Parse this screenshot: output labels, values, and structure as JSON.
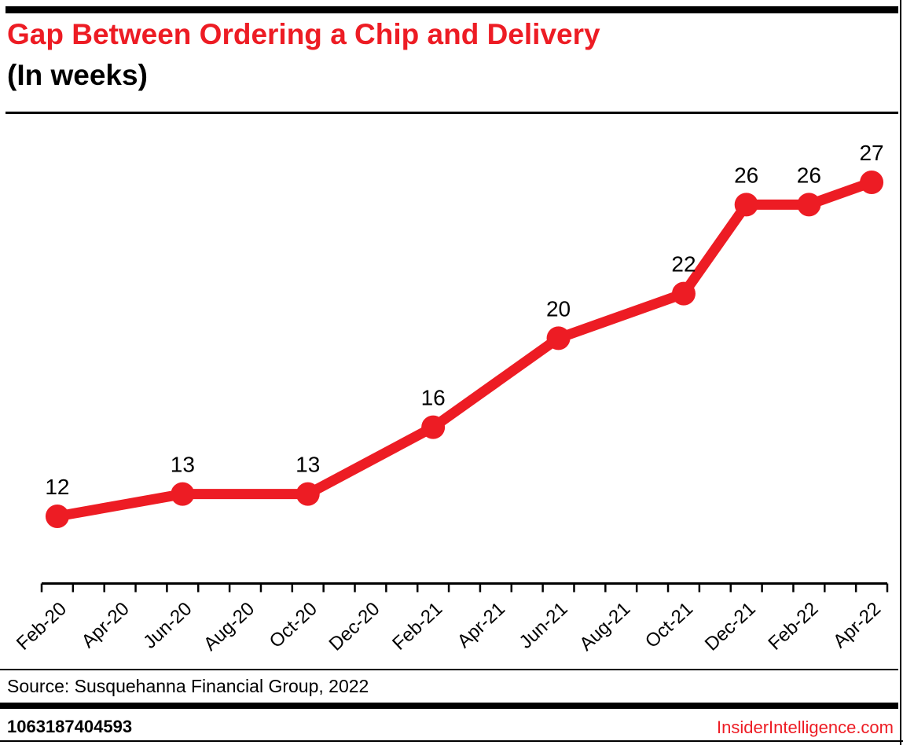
{
  "chart_data": {
    "type": "line",
    "title": "Gap Between Ordering a Chip and Delivery",
    "subtitle": "(In weeks)",
    "x": [
      "Feb-20",
      "Jun-20",
      "Oct-20",
      "Feb-21",
      "Jun-21",
      "Oct-21",
      "Dec-21",
      "Feb-22",
      "Apr-22"
    ],
    "values": [
      12,
      13,
      13,
      16,
      20,
      22,
      26,
      26,
      27
    ],
    "point_labels": [
      "12",
      "13",
      "13",
      "16",
      "20",
      "22",
      "26",
      "26",
      "27"
    ],
    "x_axis_tick_labels": [
      "Feb-20",
      "Apr-20",
      "Jun-20",
      "Aug-20",
      "Oct-20",
      "Dec-20",
      "Feb-21",
      "Apr-21",
      "Jun-21",
      "Aug-21",
      "Oct-21",
      "Dec-21",
      "Feb-22",
      "Apr-22"
    ],
    "xlabel": "",
    "ylabel": "",
    "ylim": [
      12,
      27
    ],
    "grid": false,
    "legend": "none",
    "y_axis_shown": false,
    "line_color": "#ED1C24",
    "marker_color": "#ED1C24",
    "axis_color": "#000000"
  },
  "footer": {
    "source": "Source: Susquehanna Financial Group, 2022",
    "id": "1063187404593",
    "site": "InsiderIntelligence.com"
  },
  "colors": {
    "accent_red": "#ED1C24",
    "black": "#000000",
    "background": "#ffffff"
  }
}
